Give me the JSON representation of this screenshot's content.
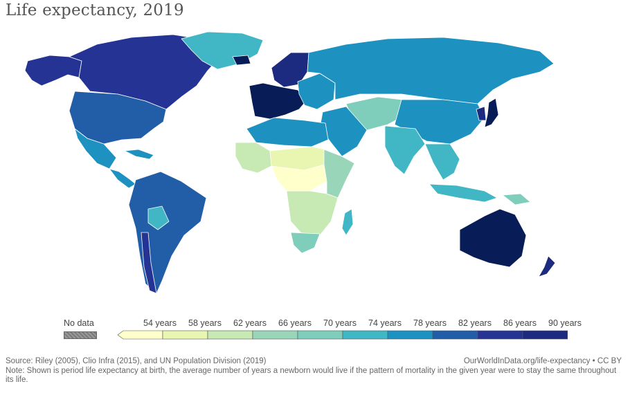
{
  "title": "Life expectancy, 2019",
  "legend": {
    "no_data_label": "No data",
    "scale": [
      {
        "label": "",
        "color": "#ffffcc"
      },
      {
        "label": "54 years",
        "color": "#e8f6b1"
      },
      {
        "label": "58 years",
        "color": "#c7e9b4"
      },
      {
        "label": "62 years",
        "color": "#99d6b9"
      },
      {
        "label": "66 years",
        "color": "#7fcdbb"
      },
      {
        "label": "70 years",
        "color": "#41b6c4"
      },
      {
        "label": "74 years",
        "color": "#1d91c0"
      },
      {
        "label": "78 years",
        "color": "#225ea8"
      },
      {
        "label": "82 years",
        "color": "#253494"
      },
      {
        "label": "86 years",
        "color": "#1c2a80"
      },
      {
        "label": "90 years",
        "color": "#081d58"
      }
    ]
  },
  "regions": [
    {
      "name": "Canada",
      "color": "#253494"
    },
    {
      "name": "Alaska",
      "color": "#253494"
    },
    {
      "name": "United States",
      "color": "#225ea8"
    },
    {
      "name": "Greenland",
      "color": "#41b6c4"
    },
    {
      "name": "Mexico",
      "color": "#1d91c0"
    },
    {
      "name": "Central America",
      "color": "#1d91c0"
    },
    {
      "name": "Caribbean",
      "color": "#1d91c0"
    },
    {
      "name": "South America",
      "color": "#225ea8"
    },
    {
      "name": "Bolivia",
      "color": "#41b6c4"
    },
    {
      "name": "Chile",
      "color": "#253494"
    },
    {
      "name": "Iceland",
      "color": "#081d58"
    },
    {
      "name": "Western Europe",
      "color": "#081d58"
    },
    {
      "name": "Scandinavia",
      "color": "#1c2a80"
    },
    {
      "name": "Eastern Europe",
      "color": "#1d91c0"
    },
    {
      "name": "Russia",
      "color": "#1d91c0"
    },
    {
      "name": "North Africa",
      "color": "#1d91c0"
    },
    {
      "name": "Middle East",
      "color": "#1d91c0"
    },
    {
      "name": "Central Asia",
      "color": "#7fcdbb"
    },
    {
      "name": "South Asia",
      "color": "#41b6c4"
    },
    {
      "name": "China",
      "color": "#1d91c0"
    },
    {
      "name": "Japan",
      "color": "#081d58"
    },
    {
      "name": "Korea",
      "color": "#1c2a80"
    },
    {
      "name": "Southeast Asia",
      "color": "#41b6c4"
    },
    {
      "name": "Indonesia",
      "color": "#41b6c4"
    },
    {
      "name": "Papua New Guinea",
      "color": "#7fcdbb"
    },
    {
      "name": "West Africa",
      "color": "#c7e9b4"
    },
    {
      "name": "Sahel",
      "color": "#e8f6b1"
    },
    {
      "name": "Central Africa",
      "color": "#ffffcc"
    },
    {
      "name": "East Africa",
      "color": "#99d6b9"
    },
    {
      "name": "Southern Africa",
      "color": "#c7e9b4"
    },
    {
      "name": "South Africa",
      "color": "#7fcdbb"
    },
    {
      "name": "Madagascar",
      "color": "#41b6c4"
    },
    {
      "name": "Australia",
      "color": "#081d58"
    },
    {
      "name": "New Zealand",
      "color": "#1c2a80"
    }
  ],
  "footer": {
    "source": "Source: Riley (2005), Clio Infra (2015), and UN Population Division (2019)",
    "credit": "OurWorldInData.org/life-expectancy • CC BY",
    "note": "Note: Shown is period life expectancy at birth, the average number of years a newborn would live if the pattern of mortality in the given year were to stay the same throughout its life."
  }
}
